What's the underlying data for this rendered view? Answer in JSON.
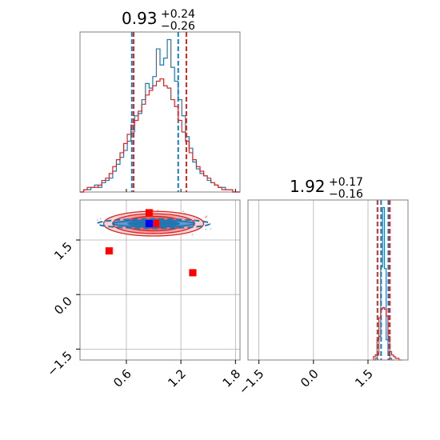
{
  "chart_data": {
    "type": "corner",
    "colors": {
      "series_a": "#1f77b4",
      "series_b": "#d62728",
      "marker_red": "#ff0000",
      "marker_blue": "#0000ff",
      "grid": "#b0b0b0"
    },
    "params": [
      {
        "title_value": "0.93",
        "title_plus": "+0.24",
        "title_minus": "−0.26",
        "range": [
          0.09,
          1.85
        ]
      },
      {
        "title_value": "1.92",
        "title_plus": "+0.17",
        "title_minus": "−0.16",
        "range": [
          -1.8,
          2.6
        ]
      }
    ],
    "marginal_0": {
      "xlim": [
        0.09,
        1.85
      ],
      "ticks": [
        0.6,
        1.2,
        1.8
      ],
      "tick_labels": [
        "0.6",
        "1.2",
        "1.8"
      ],
      "series": [
        {
          "color_key": "series_a",
          "bin_edges": [
            0.09,
            0.13,
            0.17,
            0.21,
            0.25,
            0.29,
            0.33,
            0.37,
            0.41,
            0.45,
            0.49,
            0.53,
            0.57,
            0.61,
            0.65,
            0.69,
            0.73,
            0.77,
            0.81,
            0.85,
            0.89,
            0.93,
            0.97,
            1.01,
            1.05,
            1.09,
            1.13,
            1.17,
            1.21,
            1.25,
            1.29,
            1.33,
            1.37,
            1.41,
            1.45,
            1.49,
            1.53,
            1.57,
            1.61,
            1.65,
            1.69,
            1.73,
            1.77,
            1.81,
            1.85
          ],
          "counts": [
            0,
            1,
            1,
            2,
            3,
            2,
            4,
            5,
            6,
            9,
            12,
            15,
            18,
            22,
            26,
            33,
            34,
            40,
            47,
            45,
            50,
            62,
            55,
            58,
            66,
            54,
            48,
            40,
            33,
            24,
            19,
            13,
            10,
            8,
            7,
            5,
            4,
            3,
            2,
            2,
            1,
            1,
            0,
            0
          ],
          "quantiles": [
            0.66,
            1.17
          ]
        },
        {
          "color_key": "series_b",
          "bin_edges": [
            0.09,
            0.13,
            0.17,
            0.21,
            0.25,
            0.29,
            0.33,
            0.37,
            0.41,
            0.45,
            0.49,
            0.53,
            0.57,
            0.61,
            0.65,
            0.69,
            0.73,
            0.77,
            0.81,
            0.85,
            0.89,
            0.93,
            0.97,
            1.01,
            1.05,
            1.09,
            1.13,
            1.17,
            1.21,
            1.25,
            1.29,
            1.33,
            1.37,
            1.41,
            1.45,
            1.49,
            1.53,
            1.57,
            1.61,
            1.65,
            1.69,
            1.73,
            1.77,
            1.81,
            1.85
          ],
          "counts": [
            0,
            1,
            2,
            2,
            2,
            3,
            5,
            6,
            8,
            11,
            14,
            17,
            21,
            25,
            29,
            31,
            35,
            38,
            42,
            44,
            46,
            48,
            49,
            46,
            45,
            40,
            37,
            31,
            26,
            22,
            17,
            14,
            11,
            9,
            7,
            6,
            4,
            3,
            2,
            1,
            1,
            1,
            0,
            0
          ],
          "quantiles": [
            0.68,
            1.26
          ]
        }
      ]
    },
    "marginal_1": {
      "xlim": [
        -1.8,
        2.6
      ],
      "ticks": [
        -1.5,
        0.0,
        1.5
      ],
      "tick_labels": [
        "−1.5",
        "0.0",
        "1.5"
      ],
      "series": [
        {
          "color_key": "series_a",
          "bin_edges": [
            1.65,
            1.7,
            1.75,
            1.8,
            1.85,
            1.9,
            1.95,
            2.0,
            2.05,
            2.1,
            2.15,
            2.2
          ],
          "counts": [
            0,
            1,
            3,
            14,
            55,
            90,
            54,
            12,
            3,
            1,
            0
          ],
          "quantiles": [
            1.86,
            2.06
          ]
        },
        {
          "color_key": "series_b",
          "bin_edges": [
            1.65,
            1.7,
            1.75,
            1.8,
            1.85,
            1.9,
            1.95,
            2.0,
            2.05,
            2.1,
            2.15,
            2.2,
            2.25,
            2.3,
            2.35,
            2.4,
            2.45
          ],
          "counts": [
            2,
            3,
            12,
            25,
            30,
            31,
            30,
            26,
            14,
            5,
            3,
            2,
            1,
            1,
            0,
            0
          ],
          "quantiles": [
            1.76,
            2.1
          ]
        }
      ]
    },
    "joint": {
      "xlim": [
        0.09,
        1.85
      ],
      "ylim": [
        -1.8,
        2.6
      ],
      "xticks": [
        0.6,
        1.2,
        1.8
      ],
      "x_tick_labels": [
        "0.6",
        "1.2",
        "1.8"
      ],
      "yticks": [
        1.5,
        0.0,
        -1.5
      ],
      "y_tick_labels": [
        "1.5",
        "0.0",
        "−1.5"
      ],
      "contours_b": [
        {
          "cx": 0.9,
          "cy": 1.95,
          "rx": 0.55,
          "ry": 0.34
        },
        {
          "cx": 0.9,
          "cy": 1.95,
          "rx": 0.45,
          "ry": 0.27
        },
        {
          "cx": 0.9,
          "cy": 1.95,
          "rx": 0.33,
          "ry": 0.2
        },
        {
          "cx": 0.9,
          "cy": 1.95,
          "rx": 0.2,
          "ry": 0.12
        }
      ],
      "contours_a": [
        {
          "cx": 0.9,
          "cy": 1.95,
          "rx": 0.62,
          "ry": 0.13
        },
        {
          "cx": 0.9,
          "cy": 1.95,
          "rx": 0.45,
          "ry": 0.09
        },
        {
          "cx": 0.9,
          "cy": 1.95,
          "rx": 0.28,
          "ry": 0.06
        }
      ],
      "markers": [
        {
          "x": 0.85,
          "y": 2.25,
          "color_key": "marker_red"
        },
        {
          "x": 0.92,
          "y": 1.95,
          "color_key": "marker_red"
        },
        {
          "x": 0.85,
          "y": 1.95,
          "color_key": "marker_blue"
        },
        {
          "x": 0.41,
          "y": 1.2,
          "color_key": "marker_red"
        },
        {
          "x": 1.33,
          "y": 0.6,
          "color_key": "marker_red"
        }
      ]
    }
  }
}
